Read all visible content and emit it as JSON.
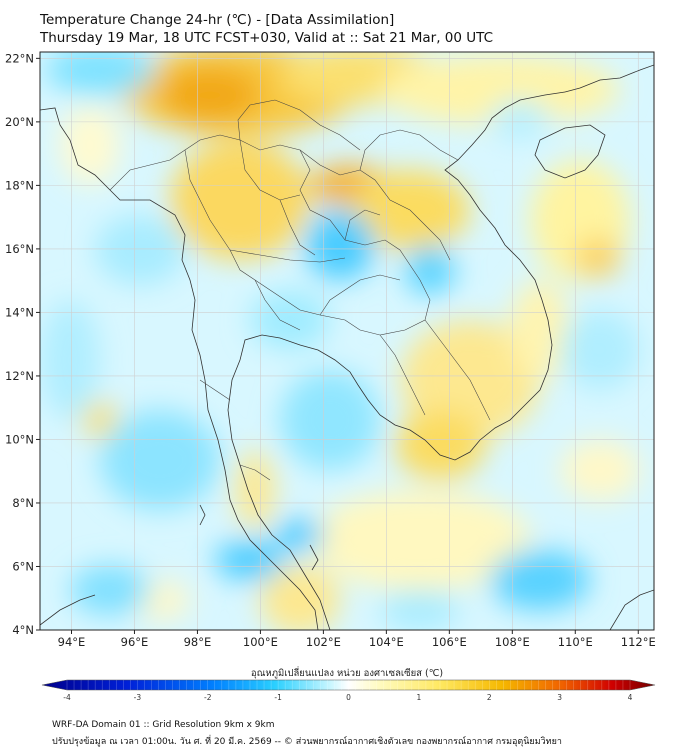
{
  "title_line1": "Temperature Change 24-hr (℃) - [Data Assimilation]",
  "title_line2": "Thursday 19 Mar, 18 UTC FCST+030, Valid at :: Sat 21 Mar, 00 UTC",
  "lat_labels": [
    "22°N",
    "20°N",
    "18°N",
    "16°N",
    "14°N",
    "12°N",
    "10°N",
    "8°N",
    "6°N",
    "4°N"
  ],
  "lon_labels": [
    "94°E",
    "96°E",
    "98°E",
    "100°E",
    "102°E",
    "104°E",
    "106°E",
    "108°E",
    "110°E",
    "112°E"
  ],
  "colorbar": {
    "label": "อุณหภูมิเปลี่ยนแปลง หน่วย องศาเซลเซียส (℃)",
    "ticks": [
      "-4",
      "-3",
      "-2",
      "-1",
      "0",
      "1",
      "2",
      "3",
      "4"
    ],
    "range": [
      -4,
      4
    ]
  },
  "footer_line1": "WRF-DA Domain 01 :: Grid Resolution 9km x 9km",
  "footer_line2": "ปรับปรุงข้อมูล ณ เวลา 01:00น. วัน ศ. ที่ 20 มี.ค. 2569 -- © ส่วนพยากรณ์อากาศเชิงตัวเลข กองพยากรณ์อากาศ กรมอุตุนิยมวิทยา",
  "colors": {
    "cold_strong": "#00008b",
    "cold": "#2aa8ff",
    "cold_light": "#b8f0ff",
    "neutral": "#ffffff",
    "warm_light": "#fff6a8",
    "warm": "#f5b800",
    "warm_strong": "#7a0000",
    "coastline": "#333333",
    "grid": "#cfcfcf"
  }
}
